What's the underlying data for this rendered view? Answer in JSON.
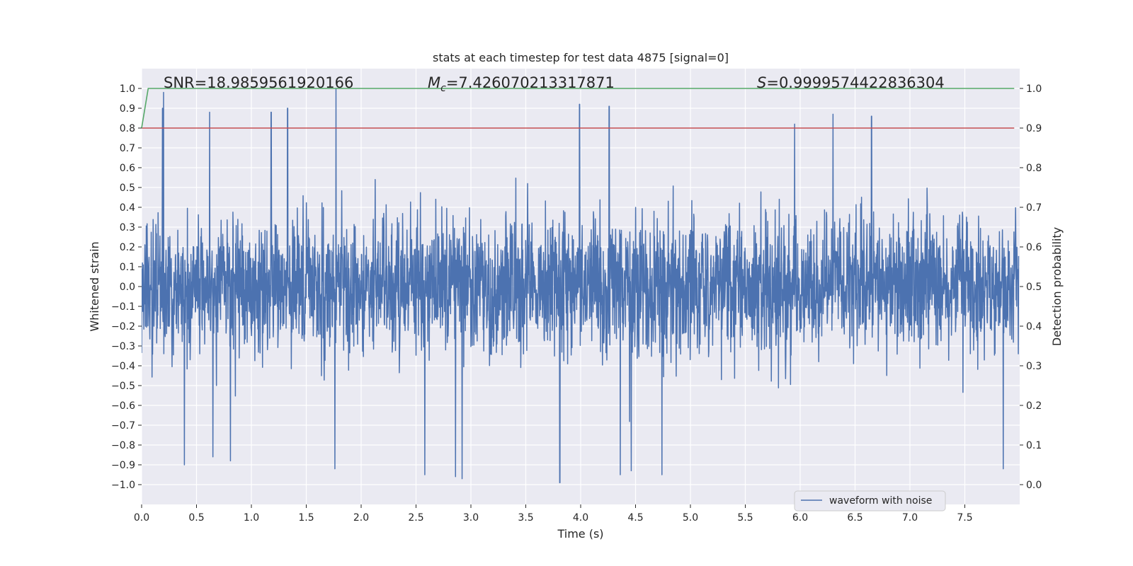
{
  "chart_data": {
    "type": "line",
    "title": "stats at each timestep for test data 4875 [signal=0]",
    "xlabel": "Time (s)",
    "ylabel": "Whitened strain",
    "y2label": "Detection probability",
    "xlim": [
      0.0,
      8.0
    ],
    "ylim": [
      -1.1,
      1.1
    ],
    "y2lim": [
      -0.05,
      1.05
    ],
    "x_ticks": [
      0.0,
      0.5,
      1.0,
      1.5,
      2.0,
      2.5,
      3.0,
      3.5,
      4.0,
      4.5,
      5.0,
      5.5,
      6.0,
      6.5,
      7.0,
      7.5
    ],
    "x_tick_labels": [
      "0.0",
      "0.5",
      "1.0",
      "1.5",
      "2.0",
      "2.5",
      "3.0",
      "3.5",
      "4.0",
      "4.5",
      "5.0",
      "5.5",
      "6.0",
      "6.5",
      "7.0",
      "7.5"
    ],
    "y_ticks": [
      1.0,
      0.9,
      0.8,
      0.7,
      0.6,
      0.5,
      0.4,
      0.3,
      0.2,
      0.1,
      0.0,
      -0.1,
      -0.2,
      -0.3,
      -0.4,
      -0.5,
      -0.6,
      -0.7,
      -0.8,
      -0.9,
      -1.0
    ],
    "y_tick_labels": [
      "1.0",
      "0.9",
      "0.8",
      "0.7",
      "0.6",
      "0.5",
      "0.4",
      "0.3",
      "0.2",
      "0.1",
      "0.0",
      "−0.1",
      "−0.2",
      "−0.3",
      "−0.4",
      "−0.5",
      "−0.6",
      "−0.7",
      "−0.8",
      "−0.9",
      "−1.0"
    ],
    "y2_ticks": [
      1.0,
      0.9,
      0.8,
      0.7,
      0.6,
      0.5,
      0.4,
      0.3,
      0.2,
      0.1,
      0.0
    ],
    "y2_tick_labels": [
      "1.0",
      "0.9",
      "0.8",
      "0.7",
      "0.6",
      "0.5",
      "0.4",
      "0.3",
      "0.2",
      "0.1",
      "0.0"
    ],
    "annotations": {
      "snr": "SNR=18.9859561920166",
      "mc_symbol": "M",
      "mc_sub": "c",
      "mc_value": "=7.426070213317871",
      "s_symbol": "S",
      "s_value": "=0.9999574422836304"
    },
    "series": [
      {
        "name": "waveform with noise",
        "axis": "left",
        "color": "#4c72b0",
        "description": "dense whitened strain noise, amplitude mostly within ±0.5, peaks near ±1.0",
        "peaks": [
          {
            "x": 0.19,
            "y": 0.9
          },
          {
            "x": 0.2,
            "y": 0.98
          },
          {
            "x": 0.62,
            "y": 0.88
          },
          {
            "x": 1.18,
            "y": 0.88
          },
          {
            "x": 1.33,
            "y": 0.9
          },
          {
            "x": 1.77,
            "y": 1.0
          },
          {
            "x": 3.99,
            "y": 0.92
          },
          {
            "x": 4.26,
            "y": 0.91
          },
          {
            "x": 5.95,
            "y": 0.82
          },
          {
            "x": 6.3,
            "y": 0.87
          },
          {
            "x": 6.65,
            "y": 0.86
          },
          {
            "x": 0.39,
            "y": -0.9
          },
          {
            "x": 0.65,
            "y": -0.86
          },
          {
            "x": 0.81,
            "y": -0.88
          },
          {
            "x": 1.76,
            "y": -0.92
          },
          {
            "x": 2.58,
            "y": -0.95
          },
          {
            "x": 2.86,
            "y": -0.96
          },
          {
            "x": 2.92,
            "y": -0.97
          },
          {
            "x": 3.81,
            "y": -0.99
          },
          {
            "x": 4.36,
            "y": -0.95
          },
          {
            "x": 4.46,
            "y": -0.93
          },
          {
            "x": 4.74,
            "y": -0.95
          },
          {
            "x": 7.85,
            "y": -0.92
          }
        ]
      },
      {
        "name": "detection probability",
        "axis": "right",
        "color": "#55a868",
        "x": [
          0.0,
          0.06,
          7.95
        ],
        "y": [
          0.9,
          1.0,
          1.0
        ]
      },
      {
        "name": "threshold",
        "axis": "right",
        "color": "#c44e52",
        "x": [
          0.0,
          7.95
        ],
        "y": [
          0.9,
          0.9
        ]
      }
    ],
    "legend": {
      "placement": "lower-right",
      "entries": [
        {
          "label": "waveform with noise",
          "color": "#4c72b0"
        }
      ]
    },
    "grid": true,
    "colors": {
      "background": "#eaeaf2",
      "grid": "#ffffff",
      "waveform": "#4c72b0",
      "probability": "#55a868",
      "threshold": "#c44e52"
    }
  }
}
